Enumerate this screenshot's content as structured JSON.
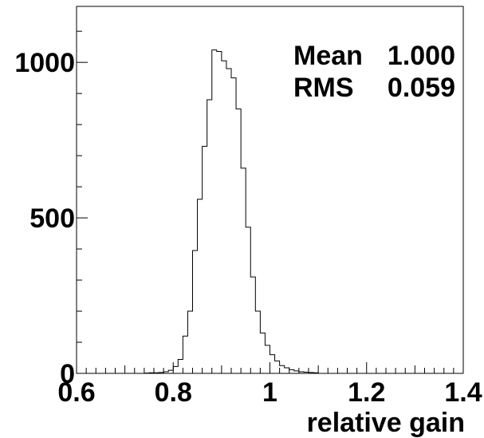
{
  "chart_data": {
    "type": "histogram",
    "title": "",
    "xlabel": "relative gain",
    "ylabel": "",
    "xlim": [
      0.6,
      1.4
    ],
    "ylim": [
      0,
      1180
    ],
    "x_ticks": [
      0.6,
      0.8,
      1.0,
      1.2,
      1.4
    ],
    "x_tick_labels": [
      "0.6",
      "0.8",
      "1",
      "1.2",
      "1.4"
    ],
    "y_ticks": [
      0,
      500,
      1000
    ],
    "y_tick_labels": [
      "0",
      "500",
      "1000"
    ],
    "bin_width": 0.01,
    "bins_start": 0.74,
    "values": [
      1,
      2,
      2,
      3,
      5,
      10,
      22,
      45,
      120,
      200,
      395,
      560,
      730,
      880,
      1040,
      1035,
      1005,
      980,
      950,
      850,
      660,
      470,
      310,
      200,
      130,
      90,
      60,
      40,
      25,
      18,
      12,
      8,
      5,
      4,
      3,
      2
    ],
    "stats": {
      "mean_label": "Mean",
      "mean_value": "1.000",
      "rms_label": "RMS",
      "rms_value": "0.059"
    },
    "grid": false,
    "legend": "none"
  }
}
